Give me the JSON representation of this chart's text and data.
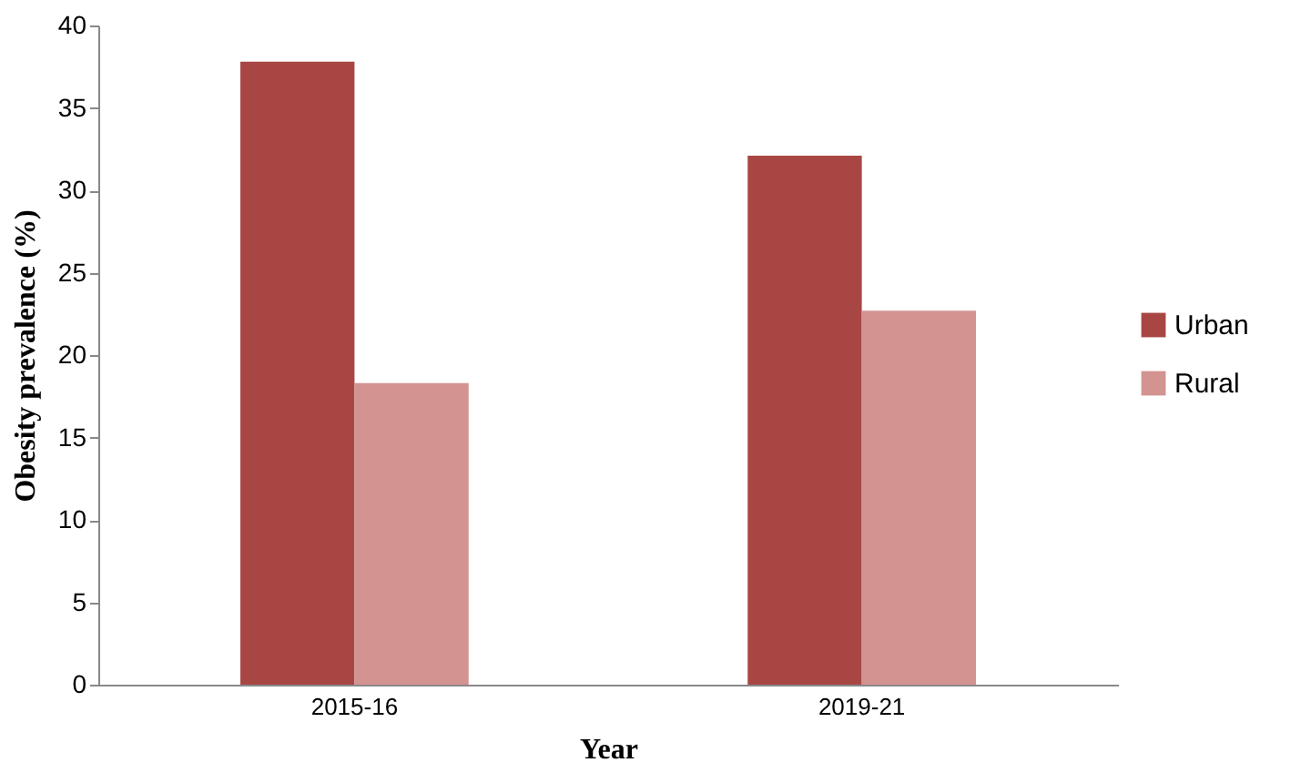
{
  "chart_data": {
    "type": "bar",
    "xlabel": "Year",
    "ylabel": "Obesity prevalence (%)",
    "categories": [
      "2015-16",
      "2019-21"
    ],
    "series": [
      {
        "name": "Urban",
        "color": "#a84644",
        "values": [
          37.8,
          32.1
        ]
      },
      {
        "name": "Rural",
        "color": "#d39391",
        "values": [
          18.3,
          22.7
        ]
      }
    ],
    "ylim": [
      0,
      40
    ],
    "yticks": [
      0,
      5,
      10,
      15,
      20,
      25,
      30,
      35,
      40
    ],
    "grid": false,
    "legend": "right"
  }
}
